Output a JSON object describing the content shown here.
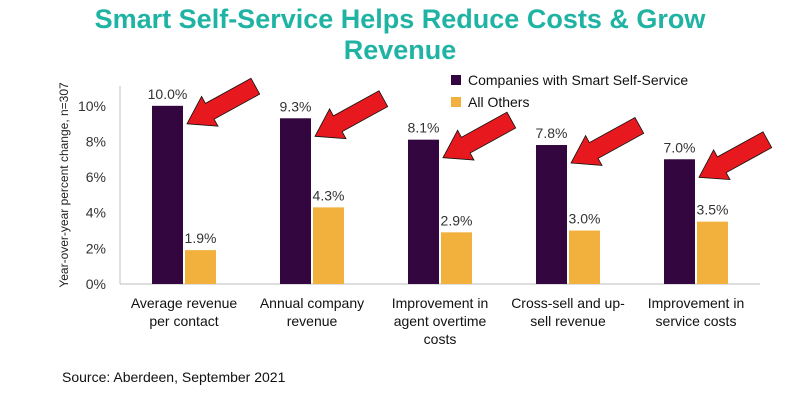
{
  "colors": {
    "title": "#1fb3a4",
    "series1": "#33063f",
    "series2": "#f2b03c",
    "arrow": "#e8191e"
  },
  "chart_data": {
    "type": "bar",
    "title": "Smart Self-Service Helps Reduce Costs & Grow Revenue",
    "ylabel": "Year-over-year percent change, n=307",
    "xlabel": "",
    "ylim": [
      0,
      11
    ],
    "yticks": [
      0,
      2,
      4,
      6,
      8,
      10
    ],
    "ytick_labels": [
      "0%",
      "2%",
      "4%",
      "6%",
      "8%",
      "10%"
    ],
    "categories": [
      [
        "Average revenue",
        "per contact"
      ],
      [
        "Annual company",
        "revenue"
      ],
      [
        "Improvement in",
        "agent overtime",
        "costs"
      ],
      [
        "Cross-sell and up-",
        "sell revenue"
      ],
      [
        "Improvement in",
        "service costs"
      ]
    ],
    "series": [
      {
        "name": "Companies with Smart Self-Service",
        "values": [
          10.0,
          9.3,
          8.1,
          7.8,
          7.0
        ],
        "labels": [
          "10.0%",
          "9.3%",
          "8.1%",
          "7.8%",
          "7.0%"
        ]
      },
      {
        "name": "All Others",
        "values": [
          1.9,
          4.3,
          2.9,
          3.0,
          3.5
        ],
        "labels": [
          "1.9%",
          "4.3%",
          "2.9%",
          "3.0%",
          "3.5%"
        ]
      }
    ],
    "legend_position": "top-right",
    "annotations": "red arrows pointing at each Smart Self-Service bar",
    "source": "Source: Aberdeen, September 2021"
  }
}
